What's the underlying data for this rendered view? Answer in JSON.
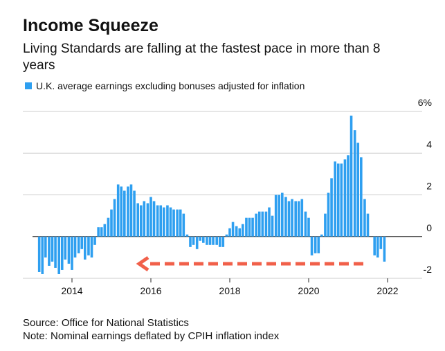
{
  "chart_data": {
    "type": "bar",
    "title": "Income Squeeze",
    "subtitle": [
      "Living Standards are falling at the fastest pace in more than 8",
      "years"
    ],
    "series": [
      {
        "name": "U.K. average earnings excluding bonuses adjusted for inflation",
        "color": "#2e9ff0",
        "values": [
          -1.7,
          -1.8,
          -1.0,
          -1.4,
          -1.2,
          -1.5,
          -1.8,
          -1.6,
          -1.1,
          -1.3,
          -1.6,
          -1.0,
          -0.8,
          -0.6,
          -1.1,
          -0.9,
          -1.0,
          -0.4,
          0.45,
          0.45,
          0.6,
          0.9,
          1.3,
          1.8,
          2.5,
          2.4,
          2.2,
          2.4,
          2.5,
          2.2,
          1.6,
          1.5,
          1.7,
          1.6,
          1.9,
          1.7,
          1.5,
          1.5,
          1.4,
          1.5,
          1.4,
          1.3,
          1.3,
          1.3,
          1.1,
          0.1,
          -0.5,
          -0.4,
          -0.6,
          -0.2,
          -0.3,
          -0.4,
          -0.4,
          -0.4,
          -0.4,
          -0.5,
          -0.5,
          0.1,
          0.4,
          0.7,
          0.5,
          0.4,
          0.6,
          0.9,
          0.9,
          0.9,
          1.1,
          1.2,
          1.2,
          1.2,
          1.4,
          1.0,
          2.0,
          2.0,
          2.1,
          1.9,
          1.7,
          1.8,
          1.7,
          1.7,
          1.8,
          1.2,
          0.9,
          -0.9,
          -0.8,
          -0.8,
          0.1,
          1.1,
          2.1,
          2.8,
          3.6,
          3.5,
          3.5,
          3.7,
          3.9,
          5.8,
          5.1,
          4.5,
          3.8,
          1.8,
          1.1,
          0,
          -0.9,
          -1.0,
          -0.6,
          -1.2
        ]
      }
    ],
    "x": [
      2013.17,
      2013.25,
      2013.33,
      2013.42,
      2013.5,
      2013.58,
      2013.67,
      2013.75,
      2013.83,
      2013.92,
      2014.0,
      2014.08,
      2014.17,
      2014.25,
      2014.33,
      2014.42,
      2014.5,
      2014.58,
      2014.67,
      2014.75,
      2014.83,
      2014.92,
      2015.0,
      2015.08,
      2015.17,
      2015.25,
      2015.33,
      2015.42,
      2015.5,
      2015.58,
      2015.67,
      2015.75,
      2015.83,
      2015.92,
      2016.0,
      2016.08,
      2016.17,
      2016.25,
      2016.33,
      2016.42,
      2016.5,
      2016.58,
      2016.67,
      2016.75,
      2016.83,
      2016.92,
      2017.0,
      2017.08,
      2017.17,
      2017.25,
      2017.33,
      2017.42,
      2017.5,
      2017.58,
      2017.67,
      2017.75,
      2017.83,
      2017.92,
      2018.0,
      2018.08,
      2018.17,
      2018.25,
      2018.33,
      2018.42,
      2018.5,
      2018.58,
      2018.67,
      2018.75,
      2018.83,
      2018.92,
      2019.0,
      2019.08,
      2019.17,
      2019.25,
      2019.33,
      2019.42,
      2019.5,
      2019.58,
      2019.67,
      2019.75,
      2019.83,
      2019.92,
      2020.0,
      2020.08,
      2020.17,
      2020.25,
      2020.33,
      2020.42,
      2020.5,
      2020.58,
      2020.67,
      2020.75,
      2020.83,
      2020.92,
      2021.0,
      2021.08,
      2021.17,
      2021.25,
      2021.33,
      2021.42,
      2021.5,
      2021.58,
      2021.67,
      2021.75,
      2021.83,
      2021.92
    ],
    "xlim": [
      2013,
      2022.5
    ],
    "xticks": [
      2014,
      2016,
      2018,
      2020,
      2022
    ],
    "ylim": [
      -2,
      6
    ],
    "yticks": [
      -2,
      0,
      2,
      4,
      {
        "value": 6,
        "label": "6%"
      }
    ],
    "grid": true,
    "source": "Source: Office for National Statistics",
    "note": "Note: Nominal earnings deflated by CPIH inflation index"
  }
}
